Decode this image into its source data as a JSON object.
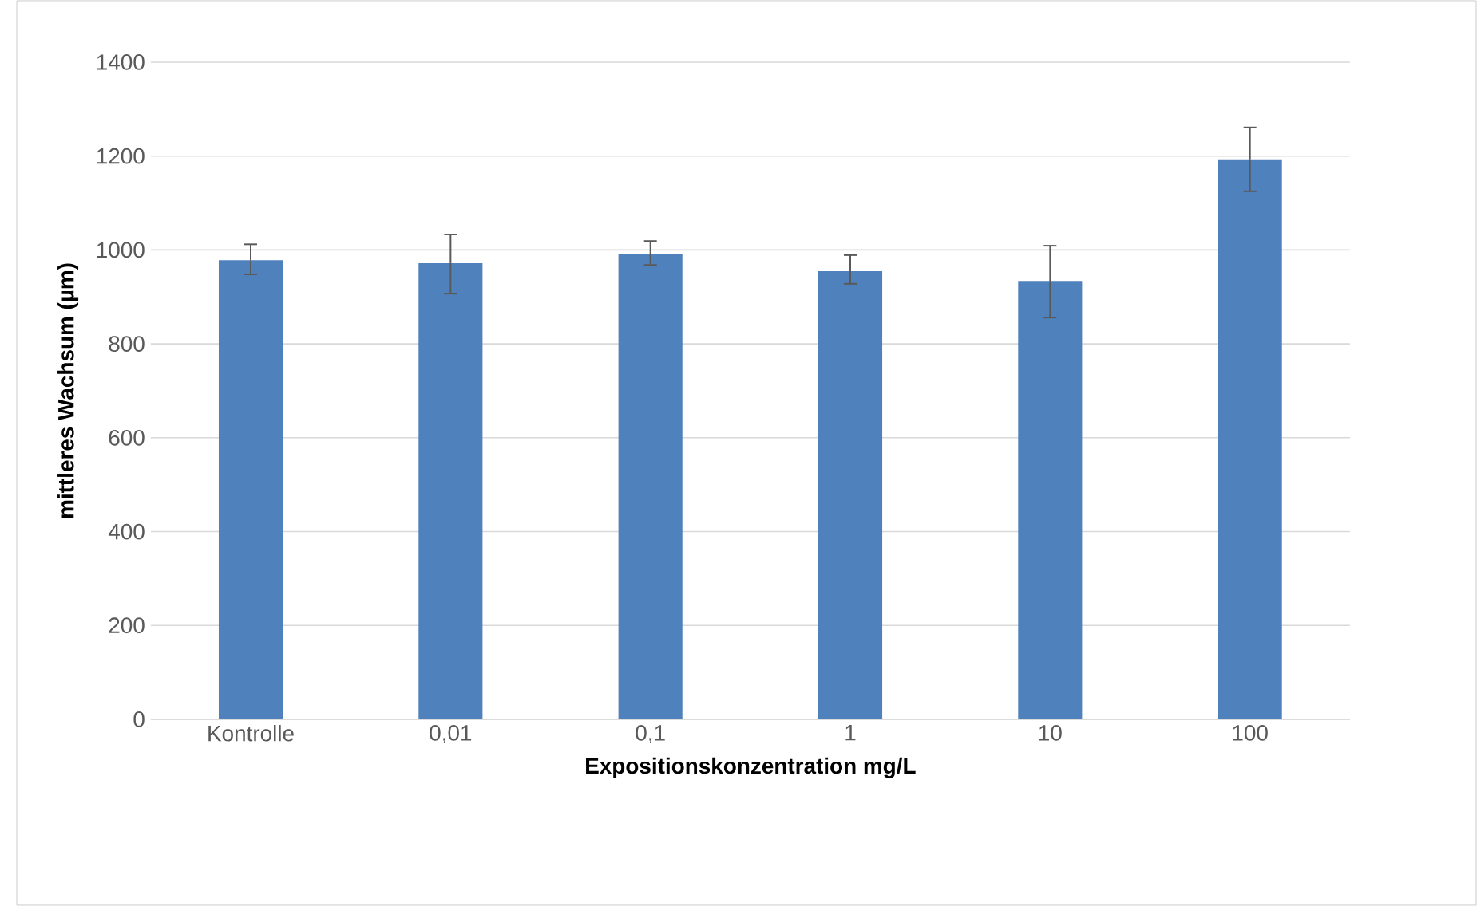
{
  "chart_data": {
    "type": "bar",
    "xlabel": "Expositionskonzentration mg/L",
    "ylabel": "mittleres Wachsum (µm)",
    "categories": [
      "Kontrolle",
      "0,01",
      "0,1",
      "1",
      "10",
      "100"
    ],
    "values": [
      978,
      972,
      992,
      955,
      934,
      1193
    ],
    "errors": [
      [
        948,
        1012
      ],
      [
        907,
        1033
      ],
      [
        968,
        1019
      ],
      [
        928,
        989
      ],
      [
        856,
        1009
      ],
      [
        1125,
        1261
      ]
    ],
    "color": "#4f81bd",
    "ylim": [
      0,
      1400
    ],
    "yticks": [
      0,
      200,
      400,
      600,
      800,
      1000,
      1200,
      1400
    ],
    "grid": "y"
  }
}
